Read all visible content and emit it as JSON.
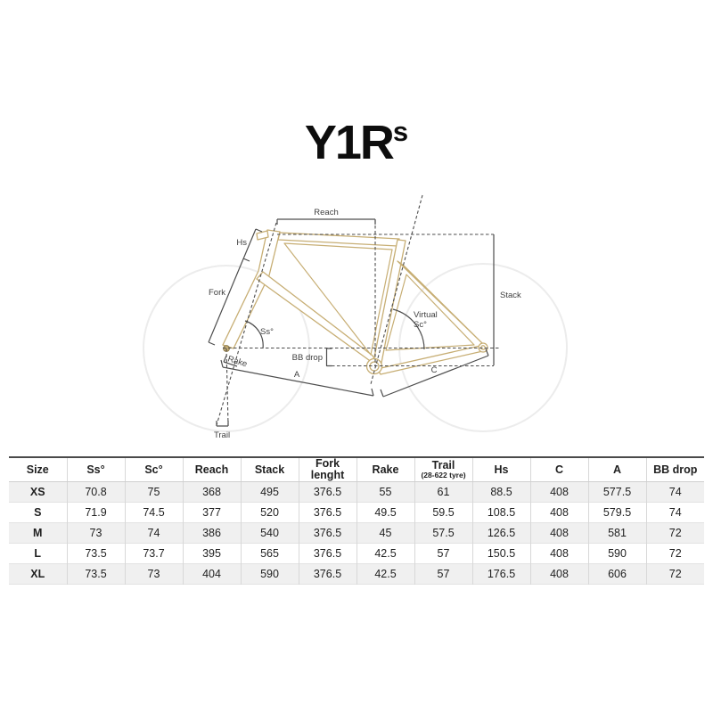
{
  "colors": {
    "frame": "#c7ae74",
    "wheel": "#ececec",
    "line": "#4d4d4d",
    "label": "#3f3f3f",
    "row_alt": "#f0f0f0"
  },
  "logo": {
    "main": "Y1R",
    "sup": "s"
  },
  "diagram": {
    "labels": {
      "reach": "Reach",
      "hs": "Hs",
      "fork": "Fork",
      "ss": "Ss°",
      "rake": "Rake",
      "trail": "Trail",
      "bb_drop": "BB drop",
      "a": "A",
      "c": "C",
      "virtual_line1": "Virtual",
      "virtual_line2": "Sc°",
      "stack": "Stack"
    }
  },
  "table": {
    "columns": [
      {
        "label": "Size",
        "sub": ""
      },
      {
        "label": "Ss°",
        "sub": ""
      },
      {
        "label": "Sc°",
        "sub": ""
      },
      {
        "label": "Reach",
        "sub": ""
      },
      {
        "label": "Stack",
        "sub": ""
      },
      {
        "label": "Fork lenght",
        "sub": ""
      },
      {
        "label": "Rake",
        "sub": ""
      },
      {
        "label": "Trail",
        "sub": "(28-622 tyre)"
      },
      {
        "label": "Hs",
        "sub": ""
      },
      {
        "label": "C",
        "sub": ""
      },
      {
        "label": "A",
        "sub": ""
      },
      {
        "label": "BB drop",
        "sub": ""
      }
    ],
    "rows": [
      {
        "size": "XS",
        "values": [
          "70.8",
          "75",
          "368",
          "495",
          "376.5",
          "55",
          "61",
          "88.5",
          "408",
          "577.5",
          "74"
        ]
      },
      {
        "size": "S",
        "values": [
          "71.9",
          "74.5",
          "377",
          "520",
          "376.5",
          "49.5",
          "59.5",
          "108.5",
          "408",
          "579.5",
          "74"
        ]
      },
      {
        "size": "M",
        "values": [
          "73",
          "74",
          "386",
          "540",
          "376.5",
          "45",
          "57.5",
          "126.5",
          "408",
          "581",
          "72"
        ]
      },
      {
        "size": "L",
        "values": [
          "73.5",
          "73.7",
          "395",
          "565",
          "376.5",
          "42.5",
          "57",
          "150.5",
          "408",
          "590",
          "72"
        ]
      },
      {
        "size": "XL",
        "values": [
          "73.5",
          "73",
          "404",
          "590",
          "376.5",
          "42.5",
          "57",
          "176.5",
          "408",
          "606",
          "72"
        ]
      }
    ]
  }
}
